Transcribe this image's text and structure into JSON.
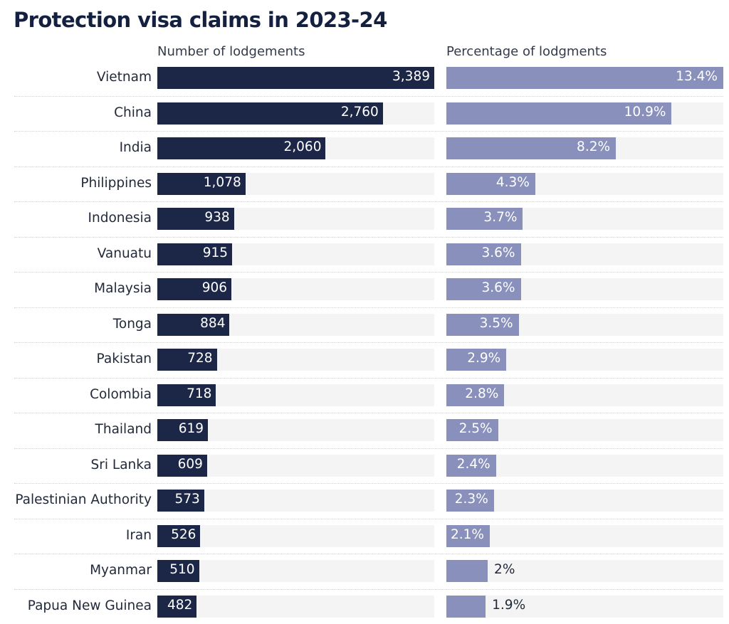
{
  "title": "Protection visa claims in 2023-24",
  "colors": {
    "number_bar": "#1c2748",
    "percent_bar": "#8890bb",
    "track": "#f4f4f5"
  },
  "chart_data": {
    "type": "bar",
    "orientation": "horizontal",
    "title": "Protection visa claims in 2023-24",
    "categories": [
      "Vietnam",
      "China",
      "India",
      "Philippines",
      "Indonesia",
      "Vanuatu",
      "Malaysia",
      "Tonga",
      "Pakistan",
      "Colombia",
      "Thailand",
      "Sri Lanka",
      "Palestinian Authority",
      "Iran",
      "Myanmar",
      "Papua New Guinea"
    ],
    "series": [
      {
        "name": "Number of lodgements",
        "values": [
          3389,
          2760,
          2060,
          1078,
          938,
          915,
          906,
          884,
          728,
          718,
          619,
          609,
          573,
          526,
          510,
          482
        ],
        "labels": [
          "3,389",
          "2,760",
          "2,060",
          "1,078",
          "938",
          "915",
          "906",
          "884",
          "728",
          "718",
          "619",
          "609",
          "573",
          "526",
          "510",
          "482"
        ],
        "xlim": [
          0,
          3389
        ]
      },
      {
        "name": "Percentage of lodgments",
        "values": [
          13.4,
          10.9,
          8.2,
          4.3,
          3.7,
          3.6,
          3.6,
          3.5,
          2.9,
          2.8,
          2.5,
          2.4,
          2.3,
          2.1,
          2.0,
          1.9
        ],
        "labels": [
          "13.4%",
          "10.9%",
          "8.2%",
          "4.3%",
          "3.7%",
          "3.6%",
          "3.6%",
          "3.5%",
          "2.9%",
          "2.8%",
          "2.5%",
          "2.4%",
          "2.3%",
          "2.1%",
          "2%",
          "1.9%"
        ],
        "xlim": [
          0,
          13.4
        ]
      }
    ],
    "grid": false,
    "legend": "none"
  }
}
